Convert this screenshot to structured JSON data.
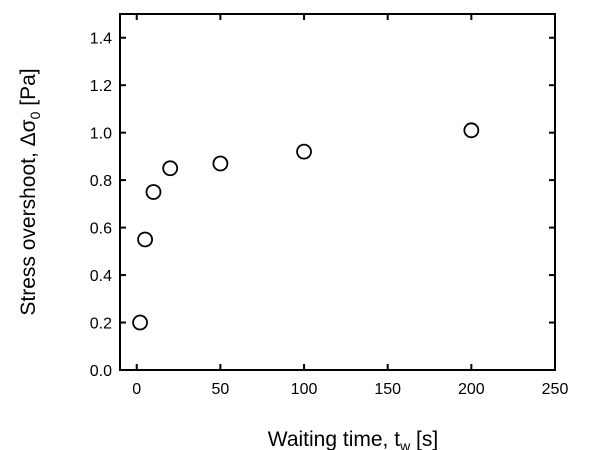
{
  "chart_data": {
    "type": "scatter",
    "title": "",
    "xlabel": {
      "main": "Waiting time, t",
      "sub": "w",
      "unit": "[s]"
    },
    "ylabel": {
      "main": "Stress overshoot, Δσ",
      "sub": "0",
      "unit": "[Pa]"
    },
    "xlim": [
      -10,
      250
    ],
    "ylim": [
      0,
      1.5
    ],
    "x_ticks": [
      0,
      50,
      100,
      150,
      200,
      250
    ],
    "x_tick_labels": [
      "0",
      "50",
      "100",
      "150",
      "200",
      "250"
    ],
    "y_ticks": [
      0,
      0.2,
      0.4,
      0.6,
      0.8,
      1.0,
      1.2,
      1.4
    ],
    "y_tick_labels": [
      "0.0",
      "0.2",
      "0.4",
      "0.6",
      "0.8",
      "1.0",
      "1.2",
      "1.4"
    ],
    "grid": false,
    "marker": "open-circle",
    "series": [
      {
        "x": [
          2,
          5,
          10,
          20,
          50,
          100,
          200
        ],
        "y": [
          0.2,
          0.55,
          0.75,
          0.85,
          0.87,
          0.92,
          1.01
        ]
      }
    ]
  }
}
